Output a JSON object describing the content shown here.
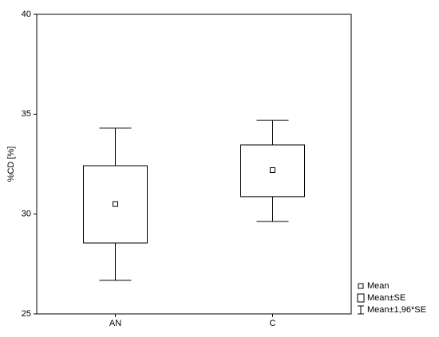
{
  "chart_data": {
    "type": "box",
    "ylabel": "%CD [%]",
    "categories": [
      "AN",
      "C"
    ],
    "mean": [
      30.5,
      32.2
    ],
    "se_low": [
      28.55,
      30.87
    ],
    "se_high": [
      32.42,
      33.46
    ],
    "ci_low": [
      26.68,
      29.63
    ],
    "ci_high": [
      34.3,
      34.69
    ],
    "ylim": [
      25,
      40
    ],
    "yticks": [
      25,
      30,
      35,
      40
    ],
    "legend": [
      "Mean",
      "Mean±SE",
      "Mean±1,96*SE"
    ],
    "color": "#000000"
  }
}
